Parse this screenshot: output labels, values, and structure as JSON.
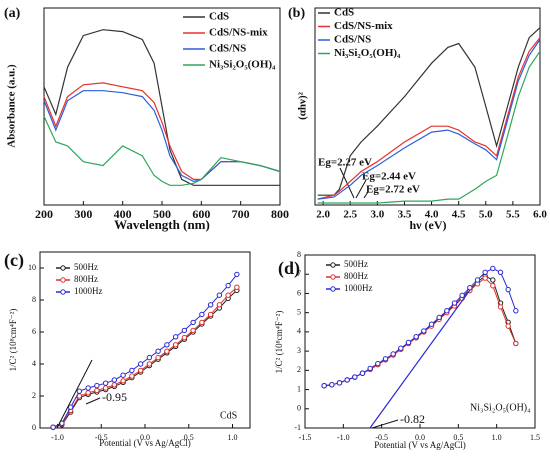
{
  "chart_data": [
    {
      "type": "line",
      "panel_label": "(a)",
      "x_label": "Wavelength (nm)",
      "y_label": "Absorbance (a.u.)",
      "x": [
        200,
        230,
        260,
        300,
        350,
        400,
        450,
        480,
        500,
        520,
        550,
        580,
        600,
        650,
        700,
        750,
        800
      ],
      "xlim": [
        200,
        800
      ],
      "xticks": [
        200,
        300,
        400,
        500,
        600,
        700,
        800
      ],
      "ylim": [
        0,
        1
      ],
      "series": [
        {
          "name": "CdS",
          "color": "#333333",
          "values": [
            0.6,
            0.46,
            0.7,
            0.86,
            0.89,
            0.88,
            0.84,
            0.72,
            0.5,
            0.28,
            0.13,
            0.1,
            0.1,
            0.1,
            0.1,
            0.1,
            0.1
          ]
        },
        {
          "name": "CdS/NS-mix",
          "color": "#e8302c",
          "values": [
            0.55,
            0.4,
            0.55,
            0.61,
            0.62,
            0.6,
            0.58,
            0.52,
            0.42,
            0.3,
            0.17,
            0.13,
            0.13,
            0.22,
            0.22,
            0.2,
            0.17
          ]
        },
        {
          "name": "CdS/NS",
          "color": "#2b5fd9",
          "values": [
            0.53,
            0.38,
            0.53,
            0.58,
            0.58,
            0.57,
            0.55,
            0.48,
            0.38,
            0.25,
            0.15,
            0.12,
            0.13,
            0.22,
            0.22,
            0.2,
            0.17
          ]
        },
        {
          "name": "Ni₃Si₂O₅(OH)₄",
          "color": "#2ea65a",
          "values": [
            0.45,
            0.32,
            0.3,
            0.22,
            0.2,
            0.3,
            0.25,
            0.15,
            0.12,
            0.1,
            0.1,
            0.11,
            0.13,
            0.24,
            0.22,
            0.2,
            0.17
          ]
        }
      ]
    },
    {
      "type": "line",
      "panel_label": "(b)",
      "x_label": "hν (eV)",
      "y_label": "(αhν)²",
      "annotations": [
        "Eg=2.27 eV",
        "Eg=2.44 eV",
        "Eg=2.72 eV"
      ],
      "x": [
        1.9,
        2.2,
        2.3,
        2.5,
        2.7,
        3.0,
        3.5,
        4.0,
        4.3,
        4.5,
        4.8,
        5.0,
        5.2,
        5.4,
        5.6,
        5.8,
        6.0
      ],
      "xlim": [
        1.85,
        6.0
      ],
      "xticks": [
        {
          "value": 2.0,
          "label": "2.0"
        },
        2.5,
        {
          "value": 3.0,
          "label": "3.0"
        },
        3.5,
        {
          "value": 4.0,
          "label": "4.0"
        },
        4.5,
        {
          "value": 5.0,
          "label": "5.0"
        },
        5.5,
        {
          "value": 6.0,
          "label": "6.0"
        }
      ],
      "ylim": [
        0,
        1
      ],
      "series": [
        {
          "name": "CdS",
          "color": "#333333",
          "values": [
            0.05,
            0.05,
            0.08,
            0.25,
            0.32,
            0.4,
            0.55,
            0.72,
            0.8,
            0.82,
            0.7,
            0.5,
            0.3,
            0.5,
            0.7,
            0.85,
            0.9
          ]
        },
        {
          "name": "CdS/NS-mix",
          "color": "#e8302c",
          "values": [
            0.03,
            0.05,
            0.07,
            0.12,
            0.17,
            0.22,
            0.32,
            0.4,
            0.4,
            0.38,
            0.32,
            0.3,
            0.25,
            0.45,
            0.65,
            0.78,
            0.85
          ]
        },
        {
          "name": "CdS/NS",
          "color": "#2b5fd9",
          "values": [
            0.03,
            0.04,
            0.06,
            0.1,
            0.15,
            0.2,
            0.29,
            0.37,
            0.38,
            0.36,
            0.31,
            0.28,
            0.23,
            0.43,
            0.63,
            0.76,
            0.84
          ]
        },
        {
          "name": "Ni₃Si₂O₅(OH)₄",
          "color": "#2ea65a",
          "values": [
            0.01,
            0.01,
            0.01,
            0.01,
            0.01,
            0.01,
            0.02,
            0.02,
            0.03,
            0.03,
            0.08,
            0.12,
            0.15,
            0.35,
            0.55,
            0.7,
            0.78
          ]
        }
      ]
    },
    {
      "type": "line",
      "markers": true,
      "panel_label": "(c)",
      "x_label": "Potential (V vs Ag/AgCl)",
      "y_label": "1/C² (10⁸cm⁴F⁻²)",
      "annotations": [
        "-0.95",
        "CdS"
      ],
      "x": [
        -1.05,
        -0.95,
        -0.85,
        -0.75,
        -0.65,
        -0.55,
        -0.45,
        -0.35,
        -0.25,
        -0.15,
        -0.05,
        0.05,
        0.15,
        0.25,
        0.35,
        0.45,
        0.55,
        0.65,
        0.75,
        0.85,
        0.95,
        1.05
      ],
      "xlim": [
        -1.2,
        1.2
      ],
      "xticks": [
        {
          "value": -1.0,
          "label": "-1.0"
        },
        -0.5,
        {
          "value": 0.0,
          "label": "0.0"
        },
        0.5,
        {
          "value": 1.0,
          "label": "1.0"
        }
      ],
      "ylim": [
        0,
        11
      ],
      "yticks": [
        0,
        2,
        4,
        6,
        8,
        10
      ],
      "series": [
        {
          "name": "500Hz",
          "color": "#222222",
          "values": [
            0.05,
            0.2,
            1.0,
            1.9,
            2.1,
            2.25,
            2.4,
            2.6,
            2.85,
            3.15,
            3.5,
            3.9,
            4.3,
            4.7,
            5.1,
            5.55,
            6.0,
            6.5,
            7.0,
            7.5,
            8.1,
            8.6
          ]
        },
        {
          "name": "800Hz",
          "color": "#e0312b",
          "values": [
            0.05,
            0.25,
            1.1,
            2.0,
            2.2,
            2.35,
            2.5,
            2.7,
            2.95,
            3.25,
            3.6,
            4.0,
            4.4,
            4.8,
            5.2,
            5.65,
            6.1,
            6.6,
            7.1,
            7.7,
            8.3,
            8.8
          ]
        },
        {
          "name": "1000Hz",
          "color": "#2a2ad8",
          "values": [
            0.05,
            0.3,
            1.3,
            2.3,
            2.5,
            2.65,
            2.8,
            3.0,
            3.3,
            3.6,
            4.0,
            4.4,
            4.8,
            5.2,
            5.7,
            6.1,
            6.6,
            7.1,
            7.7,
            8.3,
            8.9,
            9.6
          ]
        }
      ]
    },
    {
      "type": "line",
      "markers": true,
      "panel_label": "(d)",
      "x_label": "Potential (V vs Ag/AgCl)",
      "y_label": "1/C² (10⁸cm⁴F⁻²)",
      "annotations": [
        "-0.82",
        "Ni₃Si₂O₅(OH)₄"
      ],
      "x": [
        -1.25,
        -1.15,
        -1.05,
        -0.95,
        -0.85,
        -0.75,
        -0.65,
        -0.55,
        -0.45,
        -0.35,
        -0.25,
        -0.15,
        -0.05,
        0.05,
        0.15,
        0.25,
        0.35,
        0.45,
        0.55,
        0.65,
        0.75,
        0.85,
        0.95,
        1.05,
        1.15,
        1.25
      ],
      "xlim": [
        -1.5,
        1.5
      ],
      "xticks": [
        -1.5,
        {
          "value": -1.0,
          "label": "-1.0"
        },
        -0.5,
        {
          "value": 0.0,
          "label": "0.0"
        },
        0.5,
        {
          "value": 1.0,
          "label": "1.0"
        },
        1.5
      ],
      "ylim": [
        -1,
        8
      ],
      "yticks": [
        -1,
        0,
        1,
        2,
        3,
        4,
        5,
        6,
        7,
        8
      ],
      "series": [
        {
          "name": "500Hz",
          "color": "#222222",
          "values": [
            1.2,
            1.25,
            1.35,
            1.5,
            1.65,
            1.85,
            2.05,
            2.3,
            2.55,
            2.8,
            3.1,
            3.4,
            3.7,
            4.0,
            4.35,
            4.7,
            5.05,
            5.4,
            5.8,
            6.2,
            6.6,
            6.9,
            6.7,
            5.5,
            4.5,
            3.4
          ]
        },
        {
          "name": "800Hz",
          "color": "#e0312b",
          "values": [
            1.2,
            1.25,
            1.35,
            1.5,
            1.65,
            1.85,
            2.05,
            2.3,
            2.55,
            2.8,
            3.1,
            3.4,
            3.7,
            4.0,
            4.3,
            4.65,
            5.0,
            5.35,
            5.75,
            6.15,
            6.5,
            6.8,
            6.4,
            5.3,
            4.3,
            3.4
          ]
        },
        {
          "name": "1000Hz",
          "color": "#2a2ad8",
          "values": [
            1.2,
            1.25,
            1.35,
            1.5,
            1.65,
            1.85,
            2.1,
            2.35,
            2.6,
            2.85,
            3.15,
            3.45,
            3.75,
            4.05,
            4.4,
            4.75,
            5.1,
            5.5,
            5.9,
            6.3,
            6.7,
            7.1,
            7.3,
            7.1,
            6.2,
            5.1
          ]
        }
      ]
    }
  ]
}
